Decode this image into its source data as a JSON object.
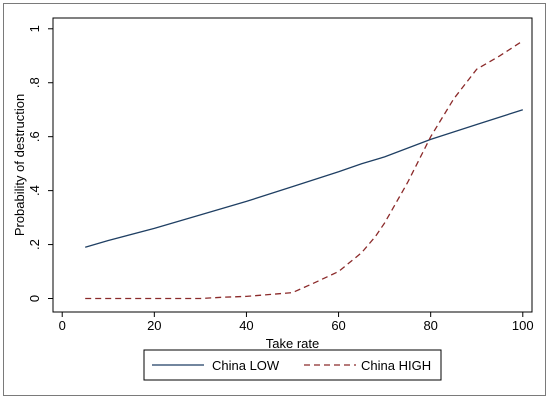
{
  "chart_data": {
    "type": "line",
    "xlabel": "Take rate",
    "ylabel": "Probability of destruction",
    "xlim": [
      0,
      100
    ],
    "ylim": [
      0,
      1
    ],
    "xticks": [
      0,
      20,
      40,
      60,
      80,
      100
    ],
    "xtick_labels": [
      "0",
      "20",
      "40",
      "60",
      "80",
      "100"
    ],
    "yticks": [
      0,
      0.2,
      0.4,
      0.6,
      0.8,
      1
    ],
    "ytick_labels": [
      "0",
      ".2",
      ".4",
      ".6",
      ".8",
      "1"
    ],
    "grid": false,
    "legend_position": "bottom",
    "series": [
      {
        "name": "China LOW",
        "color": "#1f3f63",
        "style": "solid",
        "x": [
          5,
          10,
          20,
          30,
          40,
          50,
          60,
          65,
          70,
          80,
          90,
          100
        ],
        "y": [
          0.19,
          0.215,
          0.26,
          0.31,
          0.36,
          0.415,
          0.47,
          0.5,
          0.525,
          0.59,
          0.645,
          0.7
        ]
      },
      {
        "name": "China HIGH",
        "color": "#8b2a2a",
        "style": "dashed",
        "x": [
          5,
          10,
          20,
          30,
          35,
          40,
          45,
          50,
          55,
          60,
          65,
          68,
          70,
          75,
          80,
          85,
          90,
          95,
          100
        ],
        "y": [
          0.0,
          0.0,
          0.0,
          0.0,
          0.005,
          0.008,
          0.015,
          0.022,
          0.06,
          0.1,
          0.17,
          0.23,
          0.28,
          0.43,
          0.6,
          0.74,
          0.85,
          0.9,
          0.955
        ]
      }
    ]
  }
}
